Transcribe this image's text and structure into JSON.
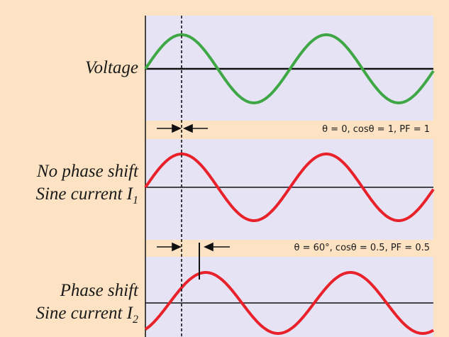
{
  "labels": {
    "voltage": "Voltage",
    "current1_line1": "No phase shift",
    "current1_line2": "Sine current ",
    "current1_var": "I",
    "current1_sub": "1",
    "current2_line1": "Phase shift",
    "current2_line2": "Sine current ",
    "current2_var": "I",
    "current2_sub": "2"
  },
  "annotations": {
    "no_shift": "θ = 0, cosθ = 1, PF = 1",
    "shift": "θ = 60°, cosθ = 0.5, PF = 0.5"
  },
  "colors": {
    "background": "#fde3c3",
    "panel": "#e6e4f4",
    "voltage_wave": "#3fa745",
    "current_wave": "#e8212a",
    "axis": "#111111"
  },
  "waves": {
    "voltage_phase_deg": 0,
    "current1_phase_deg": 0,
    "current2_phase_deg": 60
  }
}
